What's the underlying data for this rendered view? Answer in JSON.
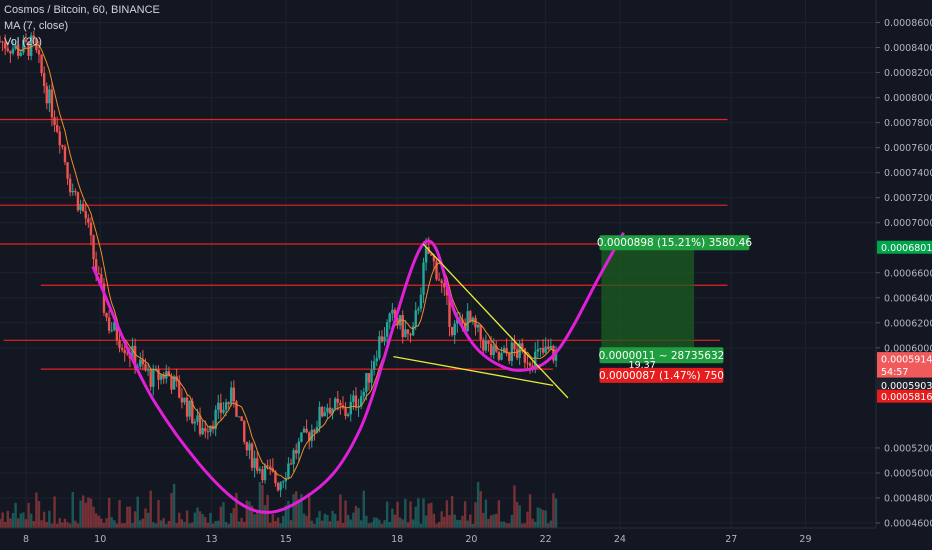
{
  "header": {
    "symbol": "Cosmos / Bitcoin, 60, BINANCE",
    "ma": "MA (7, close)",
    "vol": "Vol (20)"
  },
  "chart_data": {
    "type": "candlestick",
    "ylim": [
      0.000456,
      0.000878
    ],
    "xlim": [
      7.3,
      30.9
    ],
    "y_ticks": [
      "0.0008600",
      "0.0008400",
      "0.0008200",
      "0.0008000",
      "0.0007800",
      "0.0007600",
      "0.0007400",
      "0.0007200",
      "0.0007000",
      "0.0006600",
      "0.0006400",
      "0.0006200",
      "0.0006000",
      "0.0005200",
      "0.0005000",
      "0.0004800",
      "0.0004600"
    ],
    "x_ticks": [
      "8",
      "10",
      "13",
      "15",
      "18",
      "20",
      "22",
      "24",
      "27",
      "29"
    ],
    "x_tick_pos": [
      8,
      10,
      13,
      15,
      18,
      20,
      22,
      24,
      27,
      29
    ],
    "close_path": [
      [
        7.3,
        0.000845
      ],
      [
        7.8,
        0.000838
      ],
      [
        8.2,
        0.000842
      ],
      [
        8.5,
        0.00081
      ],
      [
        8.9,
        0.000772
      ],
      [
        9.2,
        0.00073
      ],
      [
        9.6,
        0.000705
      ],
      [
        9.9,
        0.00066
      ],
      [
        10.2,
        0.00062
      ],
      [
        10.6,
        0.000605
      ],
      [
        11.0,
        0.000588
      ],
      [
        11.4,
        0.000575
      ],
      [
        11.8,
        0.00058
      ],
      [
        12.3,
        0.000555
      ],
      [
        12.7,
        0.000535
      ],
      [
        13.1,
        0.000545
      ],
      [
        13.6,
        0.000562
      ],
      [
        13.9,
        0.00052
      ],
      [
        14.3,
        0.000505
      ],
      [
        14.8,
        0.000492
      ],
      [
        15.2,
        0.000515
      ],
      [
        15.7,
        0.000535
      ],
      [
        16.1,
        0.000555
      ],
      [
        16.6,
        0.000548
      ],
      [
        17.1,
        0.000565
      ],
      [
        17.5,
        0.000605
      ],
      [
        17.9,
        0.000625
      ],
      [
        18.4,
        0.000605
      ],
      [
        18.8,
        0.000678
      ],
      [
        19.1,
        0.00066
      ],
      [
        19.5,
        0.000615
      ],
      [
        19.9,
        0.000622
      ],
      [
        20.3,
        0.000605
      ],
      [
        20.7,
        0.00059
      ],
      [
        21.1,
        0.000598
      ],
      [
        21.6,
        0.000592
      ],
      [
        22.1,
        0.000597
      ],
      [
        22.3,
        0.000593
      ]
    ],
    "horizontal_levels": [
      {
        "y": 0.0007825,
        "x0": 7.3,
        "x1": 26.9
      },
      {
        "y": 0.000714,
        "x0": 7.3,
        "x1": 26.9
      },
      {
        "y": 0.000683,
        "x0": 7.3,
        "x1": 26.9
      },
      {
        "y": 0.00065,
        "x0": 8.4,
        "x1": 26.9
      },
      {
        "y": 0.000606,
        "x0": 7.4,
        "x1": 26.7
      },
      {
        "y": 0.000583,
        "x0": 8.4,
        "x1": 22.2
      }
    ],
    "cup_curve": [
      [
        9.8,
        0.000665
      ],
      [
        11.5,
        0.000555
      ],
      [
        13.8,
        0.000475
      ],
      [
        15.5,
        0.00048
      ],
      [
        17.0,
        0.000535
      ],
      [
        18.7,
        0.000683
      ],
      [
        19.6,
        0.000625
      ],
      [
        20.3,
        0.000595
      ],
      [
        21.3,
        0.000582
      ],
      [
        22.3,
        0.000597
      ],
      [
        23.5,
        0.00066
      ],
      [
        24.1,
        0.000692
      ]
    ],
    "wedge_upper": [
      [
        18.7,
        0.000683
      ],
      [
        22.6,
        0.00056
      ]
    ],
    "wedge_lower": [
      [
        17.9,
        0.000593
      ],
      [
        22.2,
        0.00057
      ]
    ],
    "target_box": {
      "x0": 23.5,
      "x1": 26.0,
      "y_top": 0.000683,
      "y_bottom": 0.000594
    },
    "price_tags": [
      {
        "text": "0.0006801",
        "y": 0.00068,
        "color": "#00a54c"
      },
      {
        "text": "0.0005914",
        "y": 0.000591,
        "color": "#f05a5a"
      },
      {
        "text": "54:57",
        "y": 0.000581,
        "color": "#f05a5a"
      },
      {
        "text": "0.0005903",
        "y": 0.00057,
        "color": "#1e222d"
      },
      {
        "text": "0.0005816",
        "y": 0.000561,
        "color": "#e51d1d"
      }
    ],
    "annotations": {
      "target": "0.0000898 (15.21%) 3580.46",
      "entry": "0.0000011 ~ 28735632",
      "entry_sub": "19.37",
      "stop": "0.0000087 (1.47%) 750"
    },
    "colors": {
      "up": "#26a69a",
      "down": "#ef5350",
      "level": "#e52222",
      "cup": "#e020d8",
      "wedge": "#e8e83a",
      "ma": "#f08c28",
      "target_fill": "#1b5e20",
      "grid": "#1e222d"
    }
  }
}
